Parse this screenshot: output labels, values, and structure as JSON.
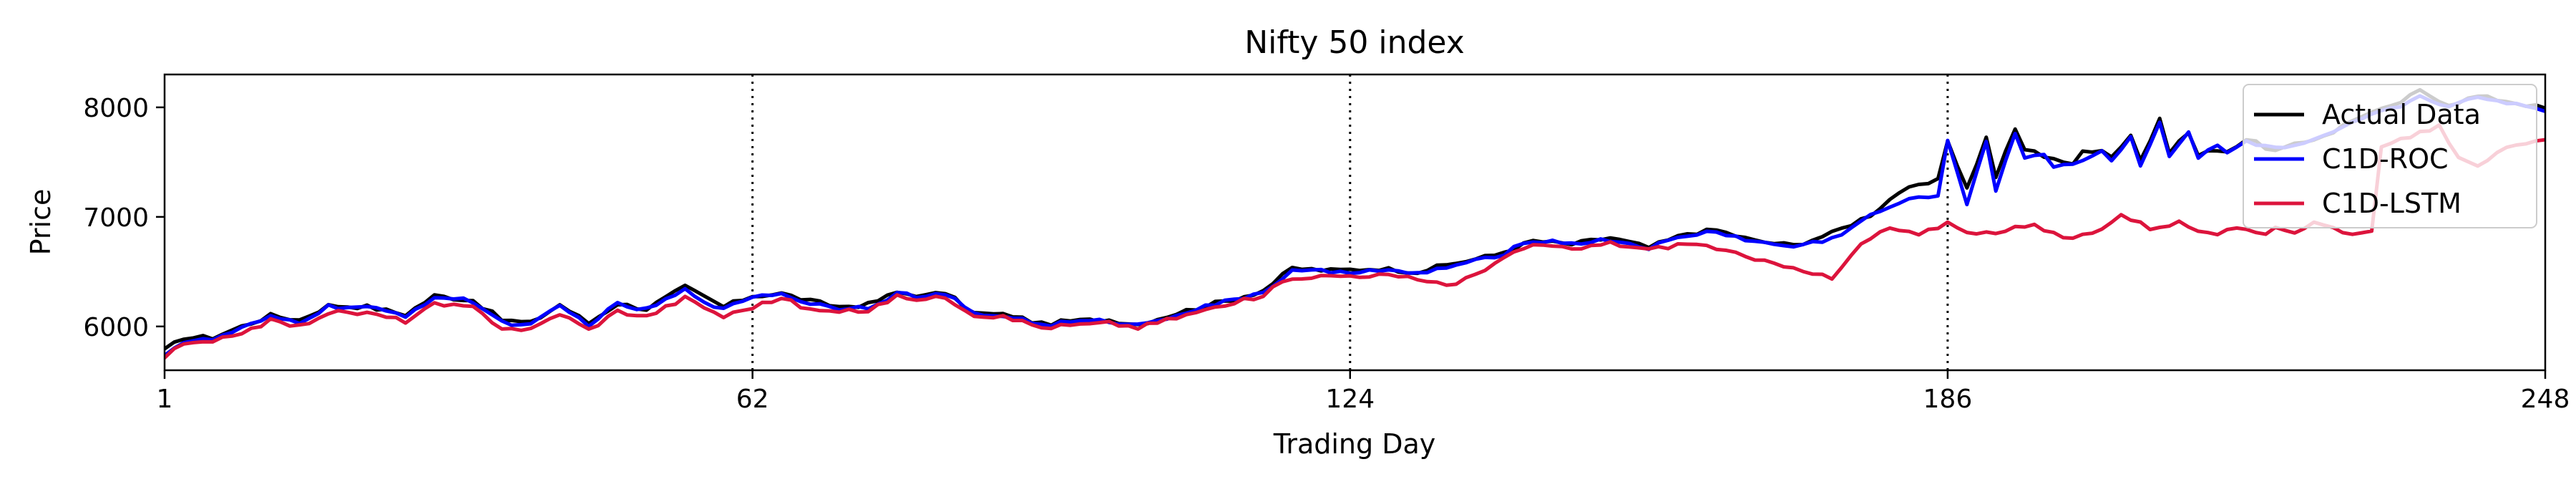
{
  "chart_data": {
    "type": "line",
    "title": "Nifty 50 index",
    "xlabel": "Trading Day",
    "ylabel": "Price",
    "xlim": [
      1,
      248
    ],
    "ylim": [
      5600,
      8300
    ],
    "x_ticks": [
      1,
      62,
      124,
      186,
      248
    ],
    "y_ticks": [
      6000,
      7000,
      8000
    ],
    "vlines": [
      62,
      124,
      186
    ],
    "grid": false,
    "legend_position": "top-right",
    "legend": [
      {
        "name": "Actual Data",
        "color": "#000000"
      },
      {
        "name": "C1D-ROC",
        "color": "#0000ff"
      },
      {
        "name": "C1D-LSTM",
        "color": "#dc143c"
      }
    ],
    "series": [
      {
        "name": "Actual Data",
        "color": "#000000",
        "keypoints": [
          [
            1,
            5780
          ],
          [
            3,
            5900
          ],
          [
            6,
            5900
          ],
          [
            9,
            6000
          ],
          [
            12,
            6100
          ],
          [
            15,
            6060
          ],
          [
            18,
            6190
          ],
          [
            22,
            6180
          ],
          [
            26,
            6110
          ],
          [
            29,
            6280
          ],
          [
            33,
            6240
          ],
          [
            36,
            6060
          ],
          [
            39,
            6030
          ],
          [
            42,
            6200
          ],
          [
            45,
            6030
          ],
          [
            48,
            6210
          ],
          [
            51,
            6160
          ],
          [
            55,
            6360
          ],
          [
            59,
            6180
          ],
          [
            62,
            6280
          ],
          [
            65,
            6300
          ],
          [
            68,
            6230
          ],
          [
            71,
            6180
          ],
          [
            74,
            6200
          ],
          [
            77,
            6310
          ],
          [
            80,
            6280
          ],
          [
            82,
            6310
          ],
          [
            85,
            6120
          ],
          [
            89,
            6100
          ],
          [
            92,
            6020
          ],
          [
            95,
            6050
          ],
          [
            99,
            6060
          ],
          [
            102,
            6020
          ],
          [
            106,
            6120
          ],
          [
            109,
            6190
          ],
          [
            112,
            6250
          ],
          [
            115,
            6330
          ],
          [
            118,
            6530
          ],
          [
            122,
            6510
          ],
          [
            127,
            6530
          ],
          [
            131,
            6500
          ],
          [
            135,
            6580
          ],
          [
            139,
            6650
          ],
          [
            143,
            6780
          ],
          [
            147,
            6750
          ],
          [
            151,
            6810
          ],
          [
            155,
            6720
          ],
          [
            159,
            6850
          ],
          [
            162,
            6880
          ],
          [
            166,
            6780
          ],
          [
            170,
            6740
          ],
          [
            174,
            6850
          ],
          [
            178,
            7020
          ],
          [
            181,
            7230
          ],
          [
            185,
            7330
          ],
          [
            188,
            7260
          ],
          [
            191,
            7370
          ],
          [
            194,
            7620
          ],
          [
            197,
            7540
          ],
          [
            200,
            7600
          ],
          [
            203,
            7550
          ],
          [
            206,
            7520
          ],
          [
            209,
            7600
          ],
          [
            212,
            7560
          ],
          [
            215,
            7600
          ],
          [
            186,
            7700
          ],
          [
            190,
            7720
          ],
          [
            193,
            7800
          ],
          [
            196,
            7560
          ],
          [
            199,
            7470
          ],
          [
            202,
            7620
          ],
          [
            205,
            7750
          ],
          [
            208,
            7880
          ],
          [
            211,
            7770
          ],
          [
            214,
            7620
          ],
          [
            217,
            7710
          ],
          [
            220,
            7600
          ],
          [
            223,
            7680
          ],
          [
            226,
            7780
          ],
          [
            229,
            7930
          ],
          [
            232,
            8000
          ],
          [
            235,
            8150
          ],
          [
            238,
            8030
          ],
          [
            241,
            8100
          ],
          [
            244,
            8060
          ],
          [
            248,
            7990
          ]
        ]
      },
      {
        "name": "C1D-ROC",
        "color": "#0000ff",
        "keypoints": [
          [
            1,
            5750
          ],
          [
            3,
            5860
          ],
          [
            6,
            5880
          ],
          [
            9,
            5980
          ],
          [
            12,
            6080
          ],
          [
            15,
            6040
          ],
          [
            18,
            6180
          ],
          [
            22,
            6170
          ],
          [
            26,
            6100
          ],
          [
            29,
            6270
          ],
          [
            33,
            6230
          ],
          [
            36,
            6040
          ],
          [
            39,
            6010
          ],
          [
            42,
            6180
          ],
          [
            45,
            6020
          ],
          [
            48,
            6200
          ],
          [
            51,
            6150
          ],
          [
            55,
            6330
          ],
          [
            59,
            6150
          ],
          [
            62,
            6280
          ],
          [
            65,
            6300
          ],
          [
            68,
            6210
          ],
          [
            71,
            6170
          ],
          [
            74,
            6180
          ],
          [
            77,
            6300
          ],
          [
            80,
            6270
          ],
          [
            82,
            6300
          ],
          [
            85,
            6110
          ],
          [
            89,
            6090
          ],
          [
            92,
            6010
          ],
          [
            95,
            6040
          ],
          [
            99,
            6050
          ],
          [
            102,
            6010
          ],
          [
            106,
            6110
          ],
          [
            109,
            6180
          ],
          [
            112,
            6240
          ],
          [
            115,
            6320
          ],
          [
            118,
            6500
          ],
          [
            122,
            6500
          ],
          [
            127,
            6510
          ],
          [
            131,
            6480
          ],
          [
            135,
            6560
          ],
          [
            139,
            6630
          ],
          [
            143,
            6790
          ],
          [
            147,
            6760
          ],
          [
            151,
            6790
          ],
          [
            155,
            6720
          ],
          [
            159,
            6830
          ],
          [
            162,
            6870
          ],
          [
            166,
            6770
          ],
          [
            170,
            6730
          ],
          [
            174,
            6800
          ],
          [
            178,
            7010
          ],
          [
            181,
            7130
          ],
          [
            185,
            7210
          ],
          [
            188,
            7120
          ],
          [
            191,
            7250
          ],
          [
            194,
            7520
          ],
          [
            197,
            7470
          ],
          [
            200,
            7530
          ],
          [
            203,
            7520
          ],
          [
            206,
            7480
          ],
          [
            209,
            7570
          ],
          [
            212,
            7540
          ],
          [
            215,
            7580
          ],
          [
            186,
            7680
          ],
          [
            190,
            7700
          ],
          [
            193,
            7770
          ],
          [
            196,
            7580
          ],
          [
            199,
            7480
          ],
          [
            202,
            7600
          ],
          [
            205,
            7720
          ],
          [
            208,
            7860
          ],
          [
            211,
            7780
          ],
          [
            214,
            7650
          ],
          [
            217,
            7690
          ],
          [
            220,
            7620
          ],
          [
            223,
            7660
          ],
          [
            226,
            7760
          ],
          [
            229,
            7900
          ],
          [
            232,
            7980
          ],
          [
            235,
            8100
          ],
          [
            238,
            8020
          ],
          [
            241,
            8080
          ],
          [
            244,
            8050
          ],
          [
            248,
            7980
          ]
        ]
      },
      {
        "name": "C1D-LSTM",
        "color": "#dc143c",
        "keypoints": [
          [
            1,
            5720
          ],
          [
            3,
            5840
          ],
          [
            6,
            5850
          ],
          [
            9,
            5950
          ],
          [
            12,
            6050
          ],
          [
            15,
            6000
          ],
          [
            18,
            6130
          ],
          [
            22,
            6120
          ],
          [
            26,
            6050
          ],
          [
            29,
            6200
          ],
          [
            33,
            6170
          ],
          [
            36,
            5990
          ],
          [
            39,
            5970
          ],
          [
            42,
            6120
          ],
          [
            45,
            5970
          ],
          [
            48,
            6140
          ],
          [
            51,
            6090
          ],
          [
            55,
            6260
          ],
          [
            59,
            6090
          ],
          [
            62,
            6180
          ],
          [
            65,
            6260
          ],
          [
            68,
            6150
          ],
          [
            71,
            6130
          ],
          [
            74,
            6150
          ],
          [
            77,
            6270
          ],
          [
            80,
            6250
          ],
          [
            82,
            6270
          ],
          [
            85,
            6110
          ],
          [
            89,
            6070
          ],
          [
            92,
            5990
          ],
          [
            95,
            6010
          ],
          [
            99,
            6030
          ],
          [
            102,
            5990
          ],
          [
            106,
            6080
          ],
          [
            109,
            6150
          ],
          [
            112,
            6210
          ],
          [
            115,
            6290
          ],
          [
            118,
            6450
          ],
          [
            122,
            6460
          ],
          [
            127,
            6470
          ],
          [
            131,
            6430
          ],
          [
            135,
            6380
          ],
          [
            139,
            6580
          ],
          [
            143,
            6750
          ],
          [
            147,
            6700
          ],
          [
            151,
            6760
          ],
          [
            155,
            6700
          ],
          [
            159,
            6760
          ],
          [
            162,
            6720
          ],
          [
            166,
            6600
          ],
          [
            170,
            6550
          ],
          [
            174,
            6430
          ],
          [
            177,
            6750
          ],
          [
            180,
            6900
          ],
          [
            183,
            6830
          ],
          [
            186,
            6950
          ],
          [
            189,
            6840
          ],
          [
            192,
            6880
          ],
          [
            195,
            6920
          ],
          [
            198,
            6800
          ],
          [
            201,
            6850
          ],
          [
            204,
            7020
          ],
          [
            207,
            6900
          ],
          [
            210,
            6950
          ],
          [
            213,
            6840
          ],
          [
            216,
            6880
          ],
          [
            219,
            6850
          ],
          [
            220,
            6920
          ],
          [
            222,
            6860
          ],
          [
            224,
            6950
          ],
          [
            226,
            6900
          ],
          [
            228,
            6850
          ],
          [
            230,
            6850
          ],
          [
            231,
            7620
          ],
          [
            233,
            7700
          ],
          [
            235,
            7780
          ],
          [
            237,
            7820
          ],
          [
            239,
            7560
          ],
          [
            241,
            7480
          ],
          [
            244,
            7620
          ],
          [
            248,
            7700
          ]
        ]
      }
    ]
  }
}
